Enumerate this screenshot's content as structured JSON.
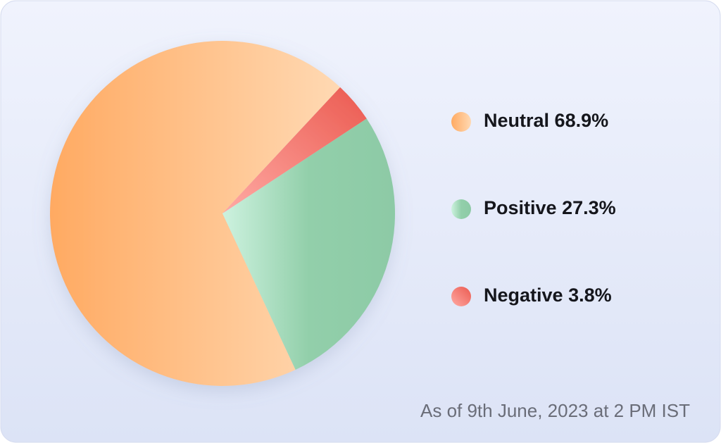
{
  "chart_data": {
    "type": "pie",
    "categories": [
      "Neutral",
      "Positive",
      "Negative"
    ],
    "values": [
      68.9,
      27.3,
      3.8
    ],
    "value_labels": [
      "68.9%",
      "27.3%",
      "3.8%"
    ],
    "colors": [
      "#ffc08a",
      "#a8dcc0",
      "#f2847c"
    ],
    "legend": "right",
    "footnote": "As of 9th June, 2023 at 2 PM IST"
  }
}
